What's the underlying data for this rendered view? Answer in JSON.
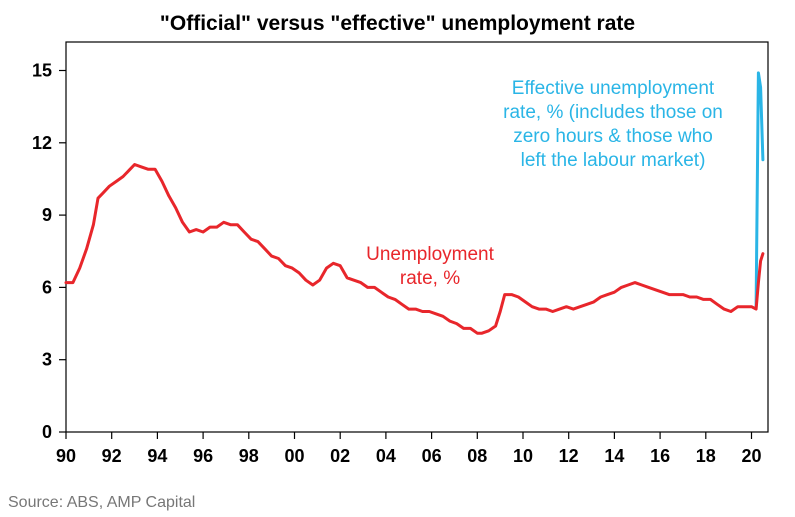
{
  "chart_data": {
    "type": "line",
    "title": "\"Official\" versus \"effective\" unemployment rate",
    "xlabel": "",
    "ylabel": "",
    "xlim": [
      1990.0,
      2020.7
    ],
    "ylim": [
      0,
      16
    ],
    "x_tick_labels": [
      "90",
      "92",
      "94",
      "96",
      "98",
      "00",
      "02",
      "04",
      "06",
      "08",
      "10",
      "12",
      "14",
      "16",
      "18",
      "20"
    ],
    "x_tick_years": [
      1990,
      1992,
      1994,
      1996,
      1998,
      2000,
      2002,
      2004,
      2006,
      2008,
      2010,
      2012,
      2014,
      2016,
      2018,
      2020
    ],
    "y_ticks": [
      0,
      3,
      6,
      9,
      12,
      15
    ],
    "grid": false,
    "series": [
      {
        "name": "Unemployment rate, %",
        "color": "#e8262b",
        "points": [
          [
            1990.0,
            6.2
          ],
          [
            1990.3,
            6.2
          ],
          [
            1990.6,
            6.8
          ],
          [
            1990.9,
            7.6
          ],
          [
            1991.2,
            8.6
          ],
          [
            1991.4,
            9.7
          ],
          [
            1991.6,
            9.9
          ],
          [
            1991.9,
            10.2
          ],
          [
            1992.2,
            10.4
          ],
          [
            1992.5,
            10.6
          ],
          [
            1992.8,
            10.9
          ],
          [
            1993.0,
            11.1
          ],
          [
            1993.3,
            11.0
          ],
          [
            1993.6,
            10.9
          ],
          [
            1993.9,
            10.9
          ],
          [
            1994.2,
            10.4
          ],
          [
            1994.5,
            9.8
          ],
          [
            1994.8,
            9.3
          ],
          [
            1995.1,
            8.7
          ],
          [
            1995.4,
            8.3
          ],
          [
            1995.7,
            8.4
          ],
          [
            1996.0,
            8.3
          ],
          [
            1996.3,
            8.5
          ],
          [
            1996.6,
            8.5
          ],
          [
            1996.9,
            8.7
          ],
          [
            1997.2,
            8.6
          ],
          [
            1997.5,
            8.6
          ],
          [
            1997.8,
            8.3
          ],
          [
            1998.1,
            8.0
          ],
          [
            1998.4,
            7.9
          ],
          [
            1998.7,
            7.6
          ],
          [
            1999.0,
            7.3
          ],
          [
            1999.3,
            7.2
          ],
          [
            1999.6,
            6.9
          ],
          [
            1999.9,
            6.8
          ],
          [
            2000.2,
            6.6
          ],
          [
            2000.5,
            6.3
          ],
          [
            2000.8,
            6.1
          ],
          [
            2001.1,
            6.3
          ],
          [
            2001.4,
            6.8
          ],
          [
            2001.7,
            7.0
          ],
          [
            2002.0,
            6.9
          ],
          [
            2002.3,
            6.4
          ],
          [
            2002.6,
            6.3
          ],
          [
            2002.9,
            6.2
          ],
          [
            2003.2,
            6.0
          ],
          [
            2003.5,
            6.0
          ],
          [
            2003.8,
            5.8
          ],
          [
            2004.1,
            5.6
          ],
          [
            2004.4,
            5.5
          ],
          [
            2004.7,
            5.3
          ],
          [
            2005.0,
            5.1
          ],
          [
            2005.3,
            5.1
          ],
          [
            2005.6,
            5.0
          ],
          [
            2005.9,
            5.0
          ],
          [
            2006.2,
            4.9
          ],
          [
            2006.5,
            4.8
          ],
          [
            2006.8,
            4.6
          ],
          [
            2007.1,
            4.5
          ],
          [
            2007.4,
            4.3
          ],
          [
            2007.7,
            4.3
          ],
          [
            2008.0,
            4.1
          ],
          [
            2008.2,
            4.1
          ],
          [
            2008.5,
            4.2
          ],
          [
            2008.8,
            4.4
          ],
          [
            2009.0,
            5.0
          ],
          [
            2009.2,
            5.7
          ],
          [
            2009.5,
            5.7
          ],
          [
            2009.8,
            5.6
          ],
          [
            2010.1,
            5.4
          ],
          [
            2010.4,
            5.2
          ],
          [
            2010.7,
            5.1
          ],
          [
            2011.0,
            5.1
          ],
          [
            2011.3,
            5.0
          ],
          [
            2011.6,
            5.1
          ],
          [
            2011.9,
            5.2
          ],
          [
            2012.2,
            5.1
          ],
          [
            2012.5,
            5.2
          ],
          [
            2012.8,
            5.3
          ],
          [
            2013.1,
            5.4
          ],
          [
            2013.4,
            5.6
          ],
          [
            2013.7,
            5.7
          ],
          [
            2014.0,
            5.8
          ],
          [
            2014.3,
            6.0
          ],
          [
            2014.6,
            6.1
          ],
          [
            2014.9,
            6.2
          ],
          [
            2015.2,
            6.1
          ],
          [
            2015.5,
            6.0
          ],
          [
            2015.8,
            5.9
          ],
          [
            2016.1,
            5.8
          ],
          [
            2016.4,
            5.7
          ],
          [
            2016.7,
            5.7
          ],
          [
            2017.0,
            5.7
          ],
          [
            2017.3,
            5.6
          ],
          [
            2017.6,
            5.6
          ],
          [
            2017.9,
            5.5
          ],
          [
            2018.2,
            5.5
          ],
          [
            2018.5,
            5.3
          ],
          [
            2018.8,
            5.1
          ],
          [
            2019.1,
            5.0
          ],
          [
            2019.4,
            5.2
          ],
          [
            2019.7,
            5.2
          ],
          [
            2020.0,
            5.2
          ],
          [
            2020.2,
            5.1
          ],
          [
            2020.3,
            6.2
          ],
          [
            2020.4,
            7.1
          ],
          [
            2020.5,
            7.4
          ]
        ]
      },
      {
        "name": "Effective unemployment rate, % (includes those on zero hours & those who left the labour market)",
        "color": "#2ab5e6",
        "points": [
          [
            2020.2,
            5.2
          ],
          [
            2020.3,
            14.9
          ],
          [
            2020.4,
            14.3
          ],
          [
            2020.5,
            11.3
          ]
        ]
      }
    ],
    "annotations": [
      {
        "lines": [
          "Unemployment",
          "rate, %"
        ],
        "color": "#e8262b"
      },
      {
        "lines": [
          "Effective unemployment",
          "rate, % (includes those on",
          "zero hours & those who",
          "left the labour market)"
        ],
        "color": "#2ab5e6"
      }
    ]
  },
  "source": "Source: ABS, AMP Capital"
}
